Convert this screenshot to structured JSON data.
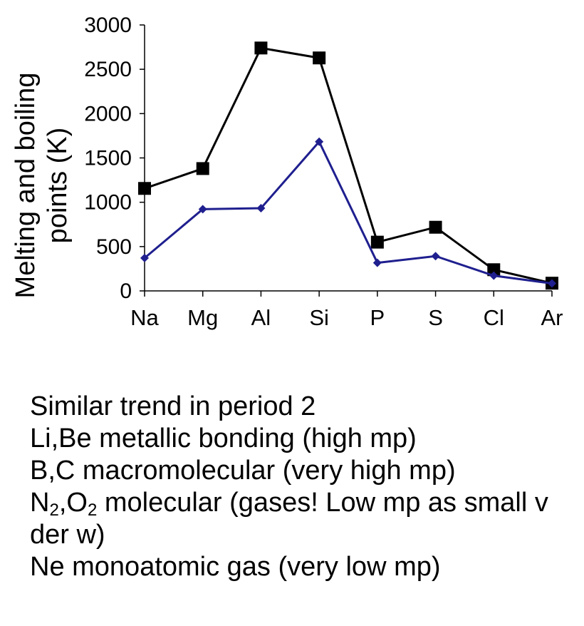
{
  "chart_data": {
    "type": "line",
    "title": "",
    "xlabel": "",
    "ylabel": "Melting and boiling points (K)",
    "ylabel_lines": [
      "Melting and boiling",
      "points (K)"
    ],
    "categories": [
      "Na",
      "Mg",
      "Al",
      "Si",
      "P",
      "S",
      "Cl",
      "Ar"
    ],
    "ylim": [
      0,
      3000
    ],
    "yticks": [
      0,
      500,
      1000,
      1500,
      2000,
      2500,
      3000
    ],
    "grid": false,
    "legend": "none",
    "series": [
      {
        "values": [
          1156,
          1380,
          2740,
          2628,
          550,
          718,
          239,
          87
        ],
        "color": "#000000",
        "marker": "square"
      },
      {
        "values": [
          371,
          922,
          933,
          1683,
          317,
          392,
          172,
          84
        ],
        "color": "#1f1f8f",
        "marker": "diamond"
      }
    ]
  },
  "notes": [
    "Similar trend in period 2",
    "Li,Be metallic bonding (high mp)",
    "B,C macromolecular (very high mp)",
    {
      "parts": [
        "N",
        "2",
        ",O",
        "2",
        " molecular (gases! Low mp as small v der w)"
      ]
    },
    "Ne monoatomic gas (very low mp)"
  ]
}
